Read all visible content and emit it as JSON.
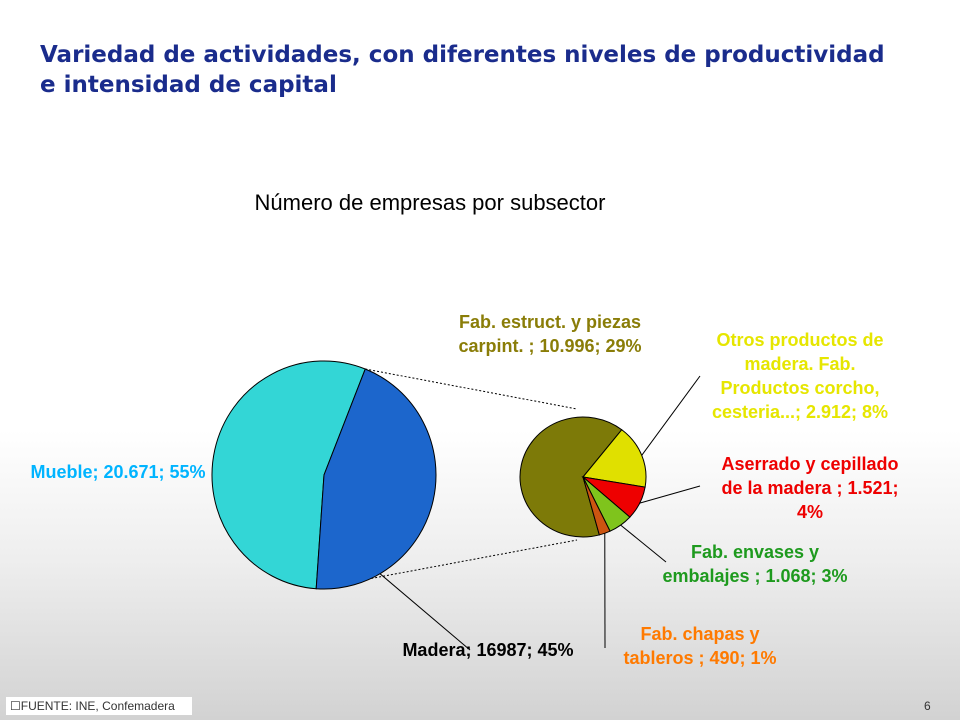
{
  "slide": {
    "title_lines": [
      "Variedad de actividades, con diferentes niveles de productividad",
      "e intensidad de capital"
    ],
    "source": "☐FUENTE: INE, Confemadera",
    "page_number": "6"
  },
  "chart_data": {
    "type": "pie",
    "title": "Número de empresas por subsector",
    "main_pie": {
      "slices": [
        {
          "name": "Mueble",
          "value": 20671,
          "percent": 55,
          "color": "#33d6d6",
          "label_lines": [
            "Mueble; 20.671; 55%"
          ],
          "label_color": "#00b4ff"
        },
        {
          "name": "Madera",
          "value": 16987,
          "percent": 45,
          "color": "#1c66cc",
          "label_lines": [
            "Madera; 16987; 45%"
          ],
          "label_color": "#000000"
        }
      ]
    },
    "breakdown_pie": {
      "of": "Madera",
      "slices": [
        {
          "name": "Fab. estruct. y piezas carpint.",
          "value": 10996,
          "percent": 29,
          "color": "#7d7a08",
          "label_lines": [
            "Fab. estruct. y piezas",
            "carpint. ; 10.996; 29%"
          ],
          "label_color": "#8a7d08"
        },
        {
          "name": "Otros productos de madera. Fab. Productos corcho, cesteria...",
          "value": 2912,
          "percent": 8,
          "color": "#e0e000",
          "label_lines": [
            "Otros productos de",
            "madera. Fab.",
            "Productos corcho,",
            "cesteria...; 2.912; 8%"
          ],
          "label_color": "#e6e600"
        },
        {
          "name": "Aserrado y cepillado de la madera",
          "value": 1521,
          "percent": 4,
          "color": "#ee0000",
          "label_lines": [
            "Aserrado y cepillado",
            "de la madera ; 1.521;",
            "4%"
          ],
          "label_color": "#ee0000"
        },
        {
          "name": "Fab. envases y embalajes",
          "value": 1068,
          "percent": 3,
          "color": "#7fc41c",
          "label_lines": [
            "Fab. envases y",
            "embalajes ; 1.068; 3%"
          ],
          "label_color": "#1e9a1e"
        },
        {
          "name": "Fab. chapas y tableros",
          "value": 490,
          "percent": 1,
          "color": "#cc5511",
          "label_lines": [
            "Fab. chapas y",
            "tableros ; 490; 1%"
          ],
          "label_color": "#ff7a00"
        }
      ]
    },
    "legend": "none"
  }
}
